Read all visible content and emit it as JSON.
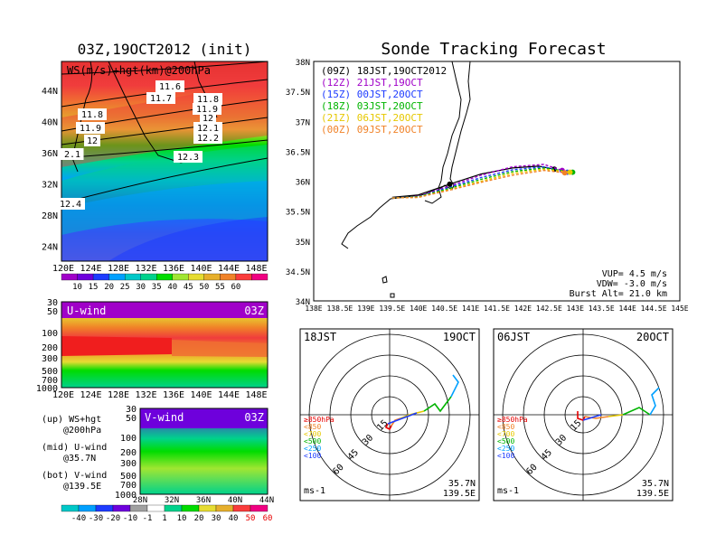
{
  "left_title": "03Z,19OCT2012 (init)",
  "right_title": "Sonde Tracking Forecast",
  "panel_ws": {
    "label": "WS(m/s)+hgt(km)@200hPa",
    "x_ticks": [
      "120E",
      "124E",
      "128E",
      "132E",
      "136E",
      "140E",
      "144E",
      "148E"
    ],
    "y_ticks": [
      "44N",
      "40N",
      "36N",
      "32N",
      "28N",
      "24N"
    ],
    "contour_labels": [
      "11.6",
      "11.7",
      "11.8",
      "11.9",
      "11.8",
      "11.9",
      "12",
      "12",
      "12.1",
      "12.2",
      "12.3",
      "2.1",
      "12.4"
    ]
  },
  "ws_colorbar": {
    "labels": [
      "10",
      "15",
      "20",
      "25",
      "30",
      "35",
      "40",
      "45",
      "50",
      "55",
      "60"
    ],
    "colors": [
      "#a000c8",
      "#6e00dc",
      "#1e3cff",
      "#00a0ff",
      "#00c8c8",
      "#00d28c",
      "#00dc00",
      "#a0e632",
      "#e6dc32",
      "#e6af2d",
      "#f08228",
      "#fa3c3c",
      "#f00082"
    ]
  },
  "panel_u": {
    "label": "U-wind",
    "time": "03Z",
    "y_ticks": [
      "30",
      "50",
      "100",
      "200",
      "300",
      "500",
      "700",
      "1000"
    ],
    "x_ticks": [
      "120E",
      "124E",
      "128E",
      "132E",
      "136E",
      "140E",
      "144E",
      "148E"
    ]
  },
  "panel_v": {
    "label": "V-wind",
    "time": "03Z",
    "y_ticks": [
      "30",
      "50",
      "100",
      "200",
      "300",
      "500",
      "700",
      "1000"
    ],
    "x_ticks": [
      "28N",
      "32N",
      "36N",
      "40N",
      "44N"
    ]
  },
  "notes": [
    [
      "(up) WS+hgt",
      "@200hPa"
    ],
    [
      "(mid) U-wind",
      "@35.7N"
    ],
    [
      "(bot) V-wind",
      "@139.5E"
    ]
  ],
  "uv_colorbar": {
    "labels": [
      "-40",
      "-30",
      "-20",
      "-10",
      "-1",
      "1",
      "10",
      "20",
      "30",
      "40",
      "50",
      "60"
    ],
    "colors": [
      "#00c8c8",
      "#00a0ff",
      "#1e3cff",
      "#6e00dc",
      "#a0a0a0",
      "#ffffff",
      "#00d28c",
      "#00dc00",
      "#e6dc32",
      "#e6af2d",
      "#fa3c3c",
      "#f00082"
    ]
  },
  "map": {
    "y_ticks": [
      "38N",
      "37.5N",
      "37N",
      "36.5N",
      "36N",
      "35.5N",
      "35N",
      "34.5N",
      "34N"
    ],
    "x_ticks": [
      "138E",
      "138.5E",
      "139E",
      "139.5E",
      "140E",
      "140.5E",
      "141E",
      "141.5E",
      "142E",
      "142.5E",
      "143E",
      "143.5E",
      "144E",
      "144.5E",
      "145E"
    ],
    "legend": [
      {
        "text": "(09Z) 18JST,19OCT2012",
        "color": "#000000"
      },
      {
        "text": "(12Z) 21JST,19OCT",
        "color": "#a000c8"
      },
      {
        "text": "(15Z) 00JST,20OCT",
        "color": "#1e3cff"
      },
      {
        "text": "(18Z) 03JST,20OCT",
        "color": "#00b400"
      },
      {
        "text": "(21Z) 06JST,20OCT",
        "color": "#e6c800"
      },
      {
        "text": "(00Z) 09JST,20OCT",
        "color": "#f08228"
      }
    ],
    "info": [
      "VUP= 4.5 m/s",
      "VDW= -3.0 m/s",
      "Burst Alt= 21.0 km"
    ]
  },
  "hodo_left": {
    "title_left": "18JST",
    "title_right": "19OCT",
    "ring_labels": [
      "15",
      "30",
      "45",
      "60"
    ],
    "levels": [
      {
        "text": "≥850hPa",
        "color": "#e60000"
      },
      {
        "text": "<850",
        "color": "#f08228"
      },
      {
        "text": "<700",
        "color": "#e6c800"
      },
      {
        "text": "<500",
        "color": "#00b400"
      },
      {
        "text": "<250",
        "color": "#00a0ff"
      },
      {
        "text": "<100",
        "color": "#1e3cff"
      }
    ],
    "unit": "ms-1",
    "loc1": "35.7N",
    "loc2": "139.5E"
  },
  "hodo_right": {
    "title_left": "06JST",
    "title_right": "20OCT",
    "ring_labels": [
      "15",
      "30",
      "45",
      "60"
    ],
    "levels": [
      {
        "text": "≥850hPa",
        "color": "#e60000"
      },
      {
        "text": "<850",
        "color": "#f08228"
      },
      {
        "text": "<700",
        "color": "#e6c800"
      },
      {
        "text": "<500",
        "color": "#00b400"
      },
      {
        "text": "<250",
        "color": "#00a0ff"
      },
      {
        "text": "<100",
        "color": "#1e3cff"
      }
    ],
    "unit": "ms-1",
    "loc1": "35.7N",
    "loc2": "139.5E"
  },
  "chart_data": {
    "type": "line",
    "title": "Sonde Tracking Forecast",
    "xlim": [
      138,
      145
    ],
    "ylim": [
      34,
      38
    ],
    "series": [
      {
        "name": "(09Z) 18JST,19OCT2012",
        "x": [
          139.5,
          140,
          140.6,
          141.2,
          141.8,
          142.3,
          142.6
        ],
        "y": [
          35.73,
          35.77,
          35.95,
          36.12,
          36.22,
          36.25,
          36.2
        ]
      },
      {
        "name": "(12Z) 21JST,19OCT",
        "x": [
          139.5,
          140,
          140.6,
          141.2,
          141.8,
          142.4,
          142.75
        ],
        "y": [
          35.72,
          35.75,
          35.92,
          36.1,
          36.24,
          36.28,
          36.18
        ]
      },
      {
        "name": "(15Z) 00JST,20OCT",
        "x": [
          139.5,
          140,
          140.6,
          141.2,
          141.8,
          142.4,
          142.85
        ],
        "y": [
          35.72,
          35.74,
          35.9,
          36.06,
          36.19,
          36.24,
          36.15
        ]
      },
      {
        "name": "(18Z) 03JST,20OCT",
        "x": [
          139.5,
          140,
          140.6,
          141.2,
          141.8,
          142.4,
          142.95
        ],
        "y": [
          35.72,
          35.74,
          35.88,
          36.03,
          36.16,
          36.22,
          36.15
        ]
      },
      {
        "name": "(21Z) 06JST,20OCT",
        "x": [
          139.5,
          140,
          140.6,
          141.2,
          141.8,
          142.4,
          142.9
        ],
        "y": [
          35.72,
          35.73,
          35.86,
          36.0,
          36.13,
          36.2,
          36.15
        ]
      },
      {
        "name": "(00Z) 09JST,20OCT",
        "x": [
          139.5,
          140,
          140.6,
          141.2,
          141.8,
          142.4,
          142.8
        ],
        "y": [
          35.72,
          35.73,
          35.85,
          35.98,
          36.1,
          36.18,
          36.14
        ]
      }
    ]
  }
}
